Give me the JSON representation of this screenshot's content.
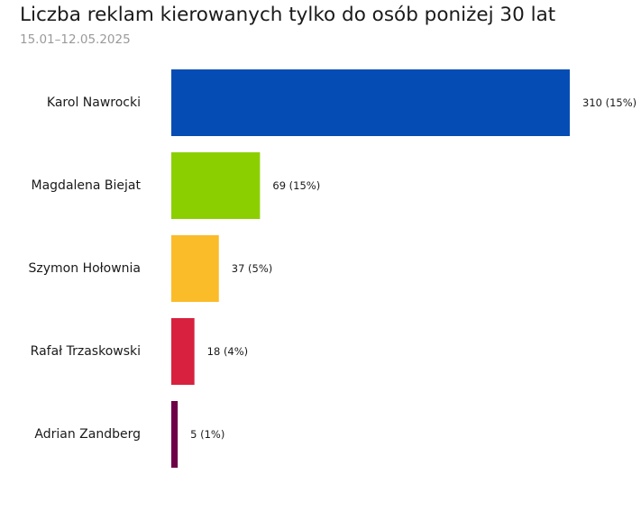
{
  "chart_data": {
    "type": "bar",
    "orientation": "horizontal",
    "title": "Liczba reklam kierowanych tylko do osób poniżej 30 lat",
    "subtitle": "15.01–12.05.2025",
    "categories": [
      "Karol Nawrocki",
      "Magdalena Biejat",
      "Szymon Hołownia",
      "Rafał Trzaskowski",
      "Adrian Zandberg"
    ],
    "values": [
      310,
      69,
      37,
      18,
      5
    ],
    "value_labels": [
      "310 (15%)",
      "69 (15%)",
      "37 (5%)",
      "18 (4%)",
      "5 (1%)"
    ],
    "colors": [
      "#054db5",
      "#8ccf00",
      "#fbbc2a",
      "#d7213f",
      "#6d0047"
    ],
    "xlim": [
      0,
      310
    ],
    "grid": false,
    "legend": "none"
  }
}
